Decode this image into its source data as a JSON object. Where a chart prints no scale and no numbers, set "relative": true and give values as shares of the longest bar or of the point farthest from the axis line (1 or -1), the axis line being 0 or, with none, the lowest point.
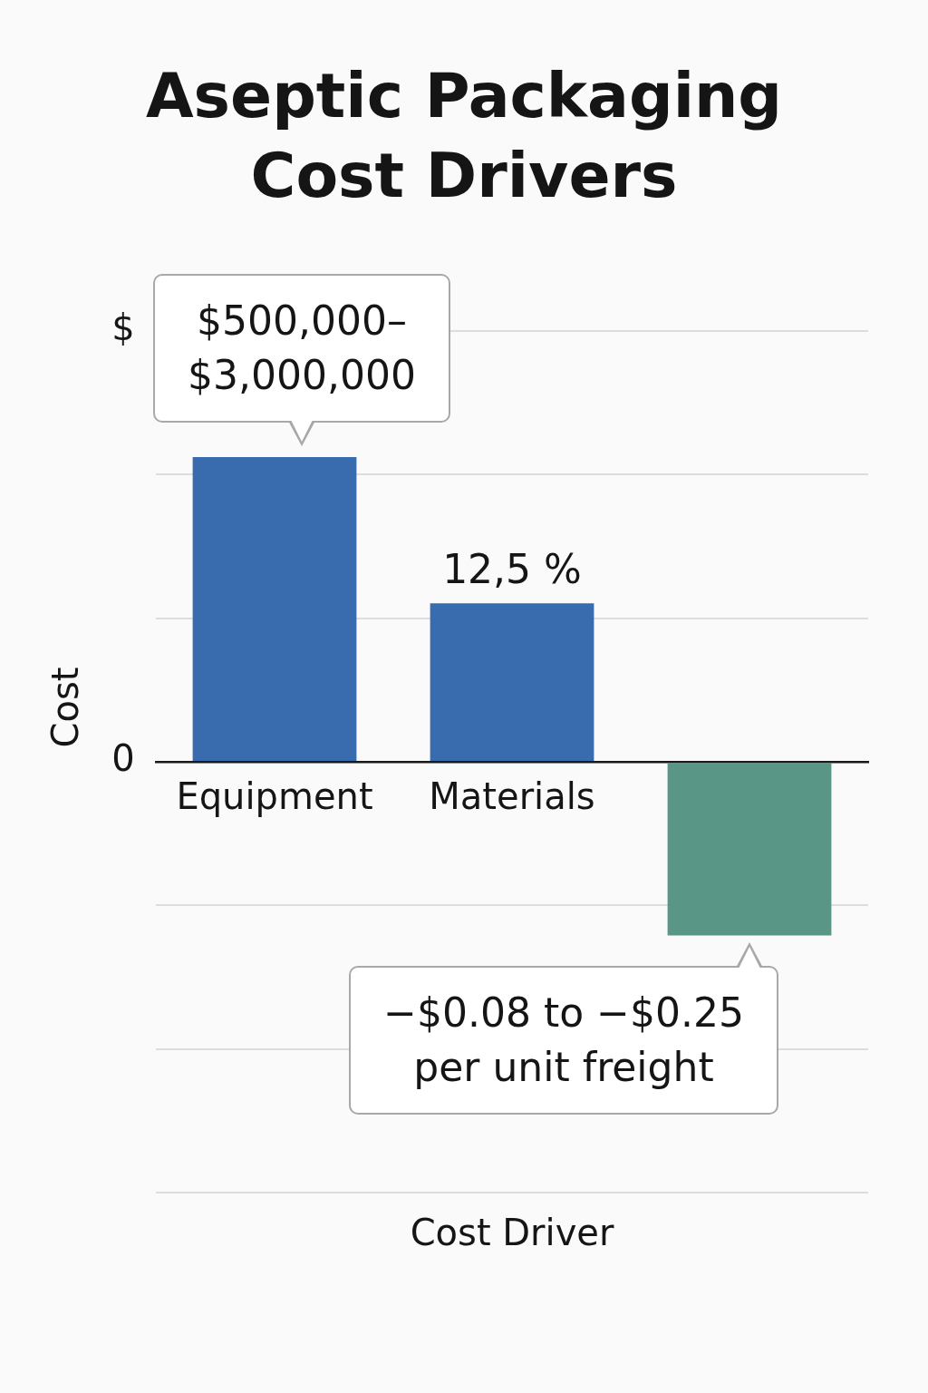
{
  "chart_data": {
    "type": "bar",
    "title": "Aseptic Packaging Cost Drivers",
    "ylabel": "Cost",
    "relative": true,
    "grid": "y",
    "categories": [
      "Equipment",
      "Materials",
      null
    ],
    "series": [
      {
        "colors": [
          "#386cae",
          "#386cae",
          "#5a9686"
        ],
        "values": [
          1,
          0.52,
          -0.57
        ]
      }
    ],
    "annotations": [
      "$",
      "0",
      "Cost Driver",
      "−$0.08 to −$0.25 per unit freight",
      {
        "text": "$500,000–$3,000,000",
        "x": "Equipment",
        "y": 1
      },
      {
        "text": "12,5 %",
        "x": "Materials",
        "y": 0.52
      }
    ]
  }
}
